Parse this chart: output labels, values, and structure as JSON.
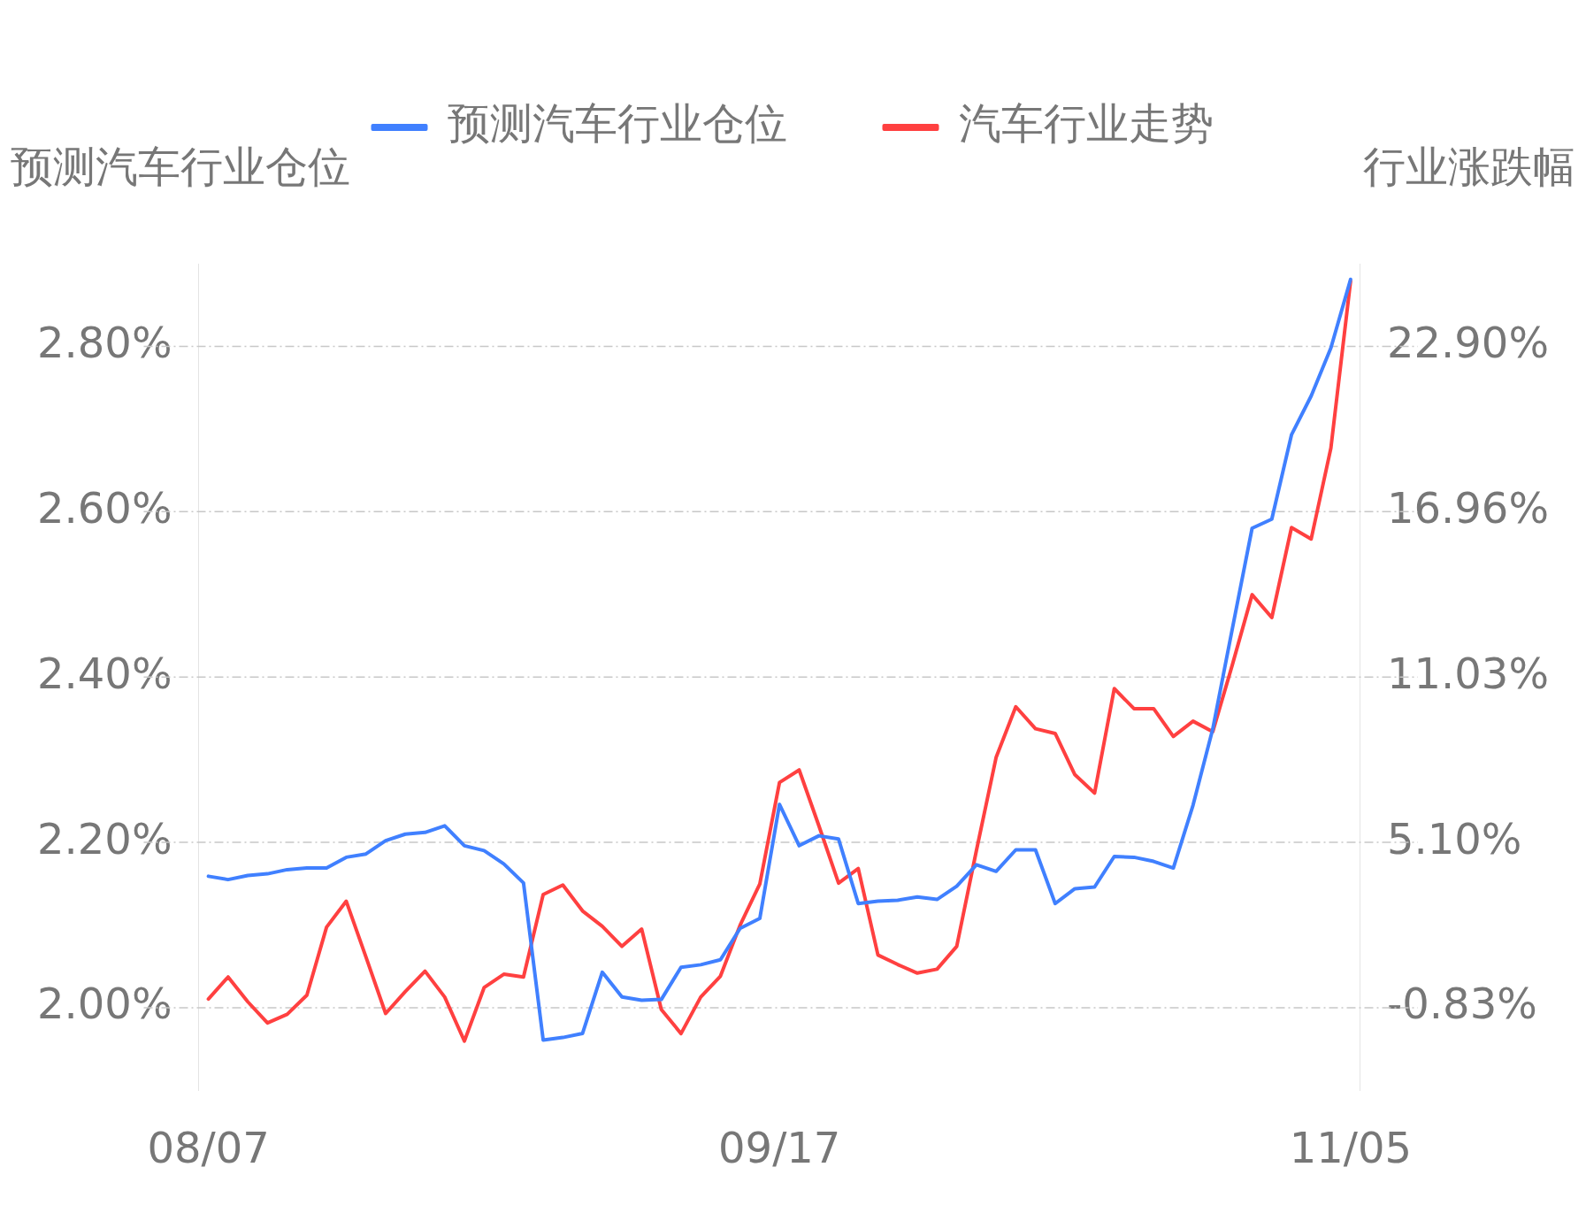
{
  "chart_data": {
    "type": "line",
    "xlabel": null,
    "ylabel": "预测汽车行业仓位",
    "y2label": "行业涨跌幅",
    "categories": [
      "08/07",
      null,
      null,
      null,
      null,
      null,
      null,
      null,
      null,
      null,
      null,
      null,
      null,
      null,
      null,
      null,
      null,
      null,
      null,
      null,
      null,
      null,
      null,
      null,
      null,
      null,
      null,
      null,
      null,
      "09/17",
      null,
      null,
      null,
      null,
      null,
      null,
      null,
      null,
      null,
      null,
      null,
      null,
      null,
      null,
      null,
      null,
      null,
      null,
      null,
      null,
      null,
      null,
      null,
      null,
      null,
      null,
      null,
      null,
      "11/05"
    ],
    "series": [
      {
        "name": "预测汽车行业仓位",
        "color": "#4080ff",
        "values": [
          2.159,
          2.155,
          2.16,
          2.162,
          2.167,
          2.169,
          2.169,
          2.182,
          2.186,
          2.202,
          2.21,
          2.212,
          2.22,
          2.196,
          2.19,
          2.174,
          2.151,
          1.961,
          1.964,
          1.969,
          2.043,
          2.013,
          2.009,
          2.01,
          2.049,
          2.052,
          2.058,
          2.096,
          2.108,
          2.246,
          2.196,
          2.208,
          2.204,
          2.126,
          2.129,
          2.13,
          2.134,
          2.131,
          2.147,
          2.173,
          2.165,
          2.191,
          2.191,
          2.126,
          2.144,
          2.146,
          2.183,
          2.182,
          2.177,
          2.169,
          2.245,
          2.337,
          2.459,
          2.58,
          2.591,
          2.693,
          2.74,
          2.798,
          2.881
        ]
      },
      {
        "name": "汽车行业走势",
        "color": "#ff4040",
        "axis": "y2",
        "values": [
          -0.52,
          0.27,
          -0.62,
          -1.38,
          -1.07,
          -0.38,
          2.06,
          2.99,
          0.99,
          -1.04,
          -0.25,
          0.48,
          -0.45,
          -2.03,
          -0.11,
          0.37,
          0.27,
          3.23,
          3.57,
          2.64,
          2.09,
          1.37,
          1.99,
          -0.9,
          -1.76,
          -0.45,
          0.3,
          2.13,
          3.61,
          7.25,
          7.7,
          5.7,
          3.64,
          4.16,
          1.06,
          0.72,
          0.41,
          0.55,
          1.37,
          4.81,
          8.15,
          9.97,
          9.18,
          9.01,
          7.53,
          6.87,
          10.62,
          9.9,
          9.9,
          8.9,
          9.45,
          9.07,
          11.48,
          13.99,
          13.17,
          16.4,
          15.99,
          19.25,
          25.24
        ]
      }
    ],
    "yticks": [
      {
        "value": 2.0,
        "label": "2.00%"
      },
      {
        "value": 2.2,
        "label": "2.20%"
      },
      {
        "value": 2.4,
        "label": "2.40%"
      },
      {
        "value": 2.6,
        "label": "2.60%"
      },
      {
        "value": 2.8,
        "label": "2.80%"
      }
    ],
    "ylim": [
      1.9,
      2.9
    ],
    "y2lim": [
      -3.8,
      25.87
    ],
    "y2ticks": [
      {
        "value": -0.83,
        "label": "-0.83%"
      },
      {
        "value": 5.1,
        "label": "5.10%"
      },
      {
        "value": 11.03,
        "label": "11.03%"
      },
      {
        "value": 16.96,
        "label": "16.96%"
      },
      {
        "value": 22.9,
        "label": "22.90%"
      }
    ],
    "grid": "y",
    "legend": "top",
    "marker": "none",
    "line_style": "solid"
  }
}
